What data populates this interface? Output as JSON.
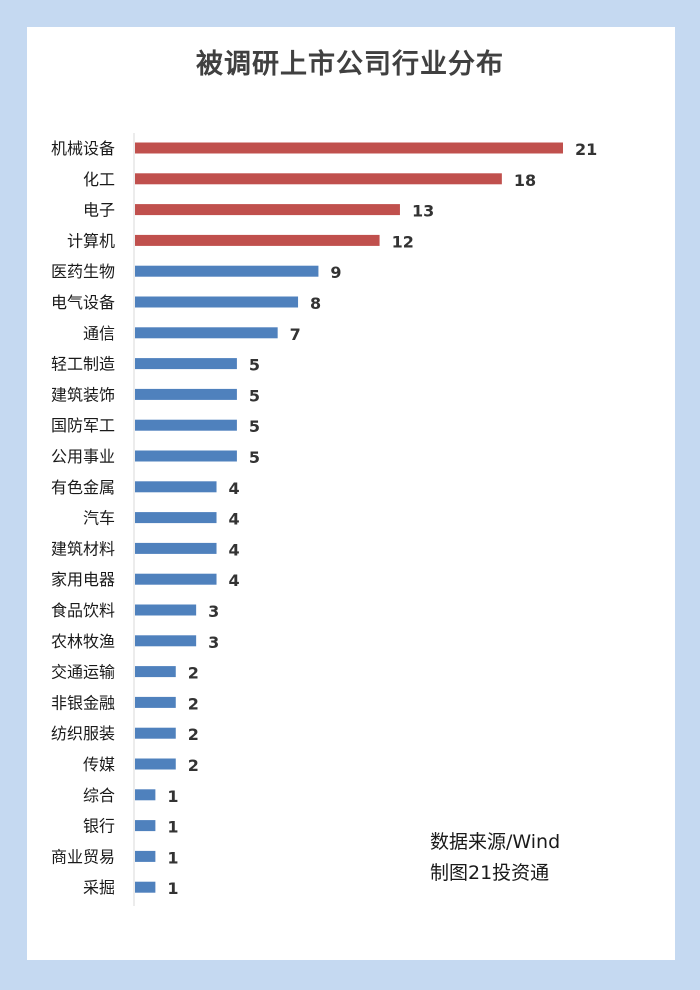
{
  "chart_data": {
    "type": "bar",
    "orientation": "horizontal",
    "title": "被调研上市公司行业分布",
    "categories": [
      "机械设备",
      "化工",
      "电子",
      "计算机",
      "医药生物",
      "电气设备",
      "通信",
      "轻工制造",
      "建筑装饰",
      "国防军工",
      "公用事业",
      "有色金属",
      "汽车",
      "建筑材料",
      "家用电器",
      "食品饮料",
      "农林牧渔",
      "交通运输",
      "非银金融",
      "纺织服装",
      "传媒",
      "综合",
      "银行",
      "商业贸易",
      "采掘"
    ],
    "values": [
      21,
      18,
      13,
      12,
      9,
      8,
      7,
      5,
      5,
      5,
      5,
      4,
      4,
      4,
      4,
      3,
      3,
      2,
      2,
      2,
      2,
      1,
      1,
      1,
      1
    ],
    "highlight_count": 4,
    "colors": {
      "highlight": "#c0504d",
      "normal": "#4f81bd"
    },
    "xlim": [
      0,
      21
    ],
    "grid": false,
    "data_labels": true,
    "xlabel": "",
    "ylabel": ""
  },
  "source_note": {
    "line1": "数据来源/Wind",
    "line2": "制图21投资通"
  },
  "colors": {
    "background": "#c5d9f1",
    "card": "#ffffff"
  }
}
